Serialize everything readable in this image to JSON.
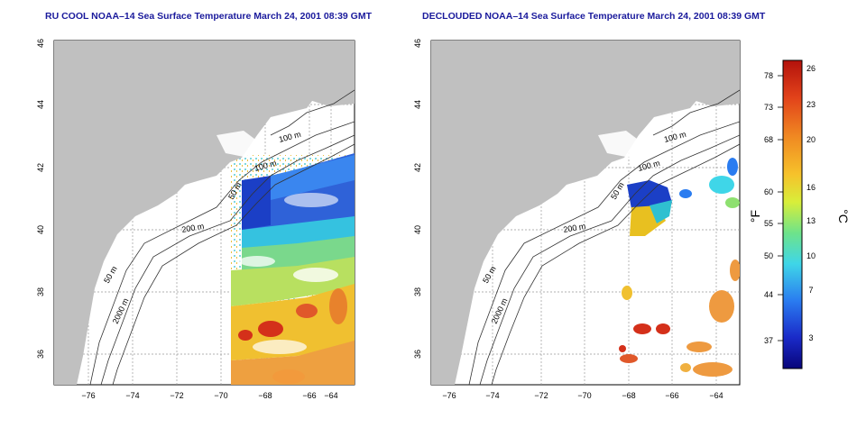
{
  "colors": {
    "land": "#c0c0c0",
    "ocean": "#ffffff",
    "title": "#1a1a9c",
    "contour": "#333333",
    "colorbar_stops": [
      "#08057a",
      "#1830d0",
      "#2a7cf0",
      "#3fd6e8",
      "#6ee38a",
      "#d8ee3a",
      "#f6c22b",
      "#f08a22",
      "#e2421a",
      "#b3120c"
    ]
  },
  "panels": [
    {
      "title": "RU COOL NOAA–14 Sea Surface Temperature March 24, 2001 08:39 GMT",
      "icon": "sst-map"
    },
    {
      "title": "DECLOUDED NOAA–14 Sea Surface Temperature March 24, 2001 08:39 GMT",
      "icon": "declouded-sst-map"
    }
  ],
  "axes": {
    "lon_ticks": [
      "−76",
      "−74",
      "−72",
      "−70",
      "−68",
      "−66",
      "−64"
    ],
    "lat_ticks": [
      "36",
      "38",
      "40",
      "42",
      "44",
      "46"
    ]
  },
  "contour_labels": {
    "left": [
      "100 m",
      "100 m",
      "50 m",
      "200 m",
      "50 m",
      "2000 m"
    ],
    "right": [
      "100 m",
      "100 m",
      "50 m",
      "200 m",
      "50 m",
      "2000 m"
    ]
  },
  "colorbar": {
    "f_label": "°F",
    "c_label": "°C",
    "f_ticks": [
      "78",
      "73",
      "68",
      "60",
      "55",
      "50",
      "44",
      "37"
    ],
    "c_ticks": [
      "26",
      "23",
      "20",
      "16",
      "13",
      "10",
      "7",
      "3"
    ]
  }
}
